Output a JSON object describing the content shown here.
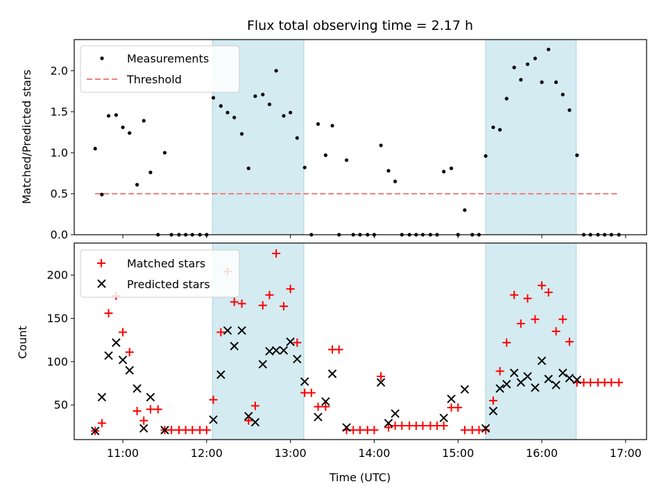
{
  "title": "Flux total observing time = 2.17 h",
  "xlabel": "Time (UTC)",
  "xticks": [
    "11:00",
    "12:00",
    "13:00",
    "14:00",
    "15:00",
    "16:00",
    "17:00"
  ],
  "xtick_hours": [
    11,
    12,
    13,
    14,
    15,
    16,
    17
  ],
  "xlim_hours": [
    10.42,
    17.25
  ],
  "shaded_intervals_hours": [
    [
      12.07,
      13.16
    ],
    [
      15.33,
      16.41
    ]
  ],
  "colors": {
    "shade": "#d4ebf1",
    "measurement": "#000000",
    "threshold": "#f08080",
    "matched": "#ff0000",
    "predicted": "#000000"
  },
  "chart_data": [
    {
      "type": "scatter",
      "ylabel": "Matched/Predicted stars",
      "ylim": [
        0,
        2.38
      ],
      "yticks": [
        "0.0",
        "0.5",
        "1.0",
        "1.5",
        "2.0"
      ],
      "ytick_values": [
        0,
        0.5,
        1.0,
        1.5,
        2.0
      ],
      "legend_position": "upper-left",
      "series": [
        {
          "name": "Measurements",
          "x": [
            10.67,
            10.75,
            10.83,
            10.92,
            11.0,
            11.08,
            11.17,
            11.25,
            11.33,
            11.42,
            11.5,
            11.58,
            11.67,
            11.75,
            11.83,
            11.92,
            12.0,
            12.08,
            12.17,
            12.25,
            12.33,
            12.42,
            12.5,
            12.58,
            12.67,
            12.75,
            12.83,
            12.92,
            13.0,
            13.08,
            13.17,
            13.25,
            13.33,
            13.42,
            13.5,
            13.58,
            13.67,
            13.75,
            13.83,
            13.92,
            14.0,
            14.08,
            14.17,
            14.25,
            14.33,
            14.42,
            14.5,
            14.58,
            14.67,
            14.75,
            14.83,
            14.92,
            15.0,
            15.08,
            15.17,
            15.25,
            15.33,
            15.42,
            15.5,
            15.58,
            15.67,
            15.75,
            15.83,
            15.92,
            16.0,
            16.08,
            16.17,
            16.25,
            16.33,
            16.42,
            16.5,
            16.58,
            16.67,
            16.75,
            16.83,
            16.92
          ],
          "y": [
            1.05,
            0.49,
            1.45,
            1.46,
            1.31,
            1.24,
            0.61,
            1.39,
            0.76,
            0.0,
            1.0,
            0.0,
            0.0,
            0.0,
            0.0,
            0.0,
            0.0,
            1.67,
            1.57,
            1.49,
            1.43,
            1.23,
            0.81,
            1.69,
            1.71,
            1.59,
            2.0,
            1.45,
            1.49,
            1.18,
            0.82,
            0.0,
            1.35,
            0.97,
            1.33,
            0.0,
            0.91,
            0.0,
            0.0,
            0.0,
            0.0,
            1.09,
            0.78,
            0.65,
            0.0,
            0.0,
            0.0,
            0.0,
            0.0,
            0.0,
            0.77,
            0.81,
            0.0,
            0.3,
            0.0,
            0.0,
            0.96,
            1.31,
            1.28,
            1.66,
            2.04,
            1.89,
            2.08,
            2.15,
            1.86,
            2.26,
            1.86,
            1.71,
            1.52,
            0.97,
            0.0,
            0.0,
            0.0,
            0.0,
            0.0,
            0.0
          ]
        },
        {
          "name": "Threshold",
          "x": [
            10.67,
            16.92
          ],
          "y": [
            0.5,
            0.5
          ]
        }
      ]
    },
    {
      "type": "scatter",
      "ylabel": "Count",
      "ylim": [
        10,
        237
      ],
      "yticks": [
        "50",
        "100",
        "150",
        "200"
      ],
      "ytick_values": [
        50,
        100,
        150,
        200
      ],
      "legend_position": "upper-left",
      "series": [
        {
          "name": "Matched stars",
          "x": [
            10.67,
            10.75,
            10.83,
            10.92,
            11.0,
            11.08,
            11.17,
            11.25,
            11.33,
            11.42,
            11.5,
            11.58,
            11.67,
            11.75,
            11.83,
            11.92,
            12.0,
            12.08,
            12.17,
            12.25,
            12.33,
            12.42,
            12.5,
            12.58,
            12.67,
            12.75,
            12.83,
            12.92,
            13.0,
            13.08,
            13.17,
            13.25,
            13.33,
            13.42,
            13.5,
            13.58,
            13.67,
            13.75,
            13.83,
            13.92,
            14.0,
            14.08,
            14.17,
            14.25,
            14.33,
            14.42,
            14.5,
            14.58,
            14.67,
            14.75,
            14.83,
            14.92,
            15.0,
            15.08,
            15.17,
            15.25,
            15.33,
            15.42,
            15.5,
            15.58,
            15.67,
            15.75,
            15.83,
            15.92,
            16.0,
            16.08,
            16.17,
            16.25,
            16.33,
            16.42,
            16.5,
            16.58,
            16.67,
            16.75,
            16.83,
            16.92
          ],
          "y": [
            20,
            29,
            156,
            176,
            134,
            111,
            43,
            32,
            45,
            45,
            21,
            21,
            21,
            21,
            21,
            21,
            21,
            56,
            134,
            204,
            169,
            167,
            32,
            49,
            165,
            177,
            225,
            164,
            184,
            122,
            64,
            64,
            48,
            48,
            114,
            114,
            21,
            21,
            21,
            21,
            21,
            83,
            24,
            26,
            26,
            26,
            26,
            26,
            26,
            26,
            26,
            47,
            47,
            21,
            21,
            21,
            21,
            55,
            89,
            122,
            177,
            144,
            173,
            149,
            188,
            180,
            135,
            149,
            123,
            76,
            76,
            76,
            76,
            76,
            76,
            76
          ]
        },
        {
          "name": "Predicted stars",
          "x": [
            10.67,
            10.75,
            10.83,
            10.92,
            11.0,
            11.08,
            11.17,
            11.25,
            11.33,
            11.5,
            12.08,
            12.17,
            12.25,
            12.33,
            12.42,
            12.5,
            12.58,
            12.67,
            12.75,
            12.83,
            12.92,
            13.0,
            13.08,
            13.17,
            13.33,
            13.42,
            13.5,
            13.67,
            14.08,
            14.17,
            14.25,
            14.83,
            14.92,
            15.08,
            15.33,
            15.42,
            15.5,
            15.58,
            15.67,
            15.75,
            15.83,
            15.92,
            16.0,
            16.08,
            16.17,
            16.25,
            16.33,
            16.42
          ],
          "y": [
            20,
            59,
            107,
            122,
            102,
            90,
            69,
            23,
            59,
            21,
            33,
            85,
            136,
            118,
            136,
            37,
            30,
            97,
            112,
            113,
            113,
            123,
            103,
            77,
            36,
            54,
            86,
            24,
            76,
            29,
            40,
            35,
            57,
            68,
            23,
            43,
            69,
            74,
            87,
            76,
            83,
            70,
            101,
            80,
            73,
            87,
            81,
            79
          ]
        }
      ]
    }
  ]
}
